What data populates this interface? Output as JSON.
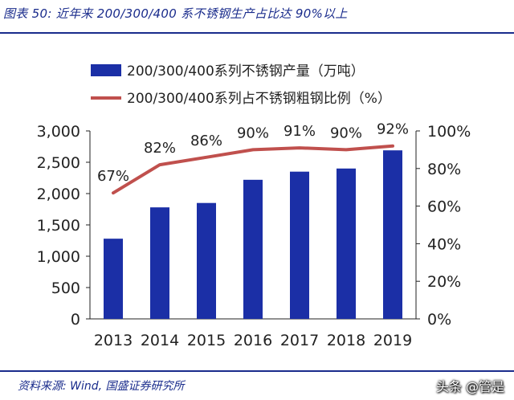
{
  "figure": {
    "title": "图表 50:  近年来 200/300/400 系不锈钢生产占比达 90%以上",
    "source": "资料来源:  Wind,  国盛证券研究所",
    "watermark": "头条 @管是"
  },
  "colors": {
    "bar": "#1b2fa6",
    "line": "#c0504d",
    "accent": "#1a2c8c",
    "text": "#222222"
  },
  "chart_data": {
    "type": "bar",
    "title": "",
    "categories": [
      "2013",
      "2014",
      "2015",
      "2016",
      "2017",
      "2018",
      "2019"
    ],
    "legend_position": "top",
    "grid": false,
    "y_left": {
      "ylim": [
        0,
        3000
      ],
      "ticks": [
        "0",
        "500",
        "1,000",
        "1,500",
        "2,000",
        "2,500",
        "3,000"
      ],
      "tick_values": [
        0,
        500,
        1000,
        1500,
        2000,
        2500,
        3000
      ]
    },
    "y_right": {
      "ylim": [
        0,
        100
      ],
      "ticks": [
        "0%",
        "20%",
        "40%",
        "60%",
        "80%",
        "100%"
      ],
      "tick_values": [
        0,
        20,
        40,
        60,
        80,
        100
      ]
    },
    "series": [
      {
        "name": "200/300/400系列不锈钢产量（万吨）",
        "type": "bar",
        "axis": "left",
        "values": [
          1280,
          1780,
          1850,
          2220,
          2350,
          2400,
          2690
        ]
      },
      {
        "name": "200/300/400系列占不锈钢粗钢比例（%）",
        "type": "line",
        "axis": "right",
        "values": [
          67,
          82,
          86,
          90,
          91,
          90,
          92
        ],
        "labels": [
          "67%",
          "82%",
          "86%",
          "90%",
          "91%",
          "90%",
          "92%"
        ]
      }
    ]
  }
}
